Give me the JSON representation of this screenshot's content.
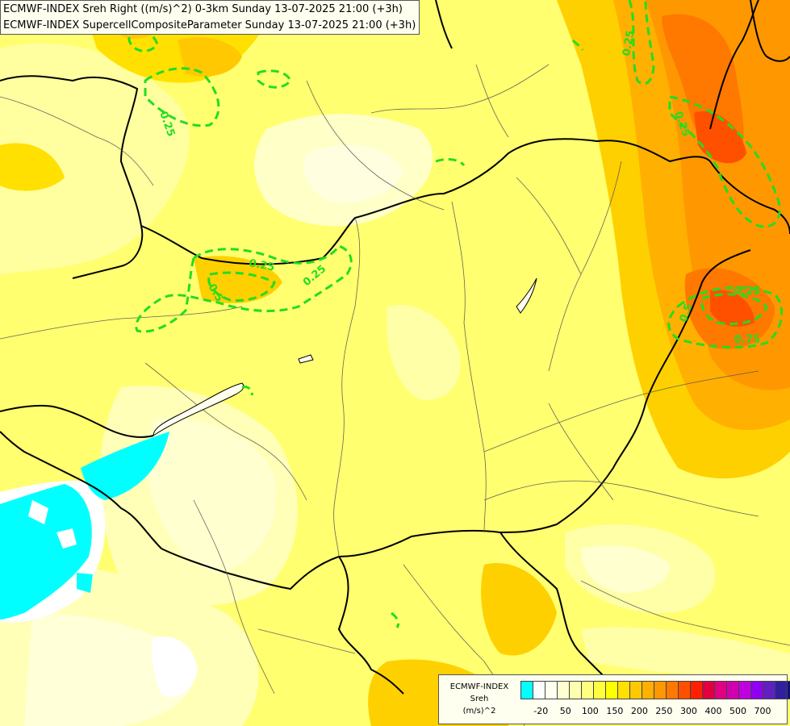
{
  "header": {
    "line1": "ECMWF-INDEX Sreh Right ((m/s)^2) 0-3km Sunday 13-07-2025 21:00 (+3h)",
    "line2": "ECMWF-INDEX SupercellCompositeParameter Sunday 13-07-2025 21:00 (+3h)"
  },
  "legend": {
    "line1": "ECMWF-INDEX",
    "line2": "Sreh",
    "line3": "(m/s)^2",
    "colors": [
      "#00ffff",
      "#ffffff",
      "#fffff0",
      "#ffffd0",
      "#ffffb0",
      "#ffff80",
      "#ffff40",
      "#ffff00",
      "#ffe000",
      "#ffc800",
      "#ffb000",
      "#ff9800",
      "#ff7800",
      "#ff5000",
      "#ff2000",
      "#e00040",
      "#e00080",
      "#d000b0",
      "#c000e0",
      "#9000f0",
      "#6020c0",
      "#3020a0",
      "#101070"
    ],
    "ticks": [
      {
        "label": "-20",
        "index": 1
      },
      {
        "label": "50",
        "index": 3
      },
      {
        "label": "100",
        "index": 5
      },
      {
        "label": "150",
        "index": 7
      },
      {
        "label": "200",
        "index": 9
      },
      {
        "label": "250",
        "index": 11
      },
      {
        "label": "300",
        "index": 13
      },
      {
        "label": "400",
        "index": 15
      },
      {
        "label": "500",
        "index": 17
      },
      {
        "label": "700",
        "index": 19
      }
    ]
  },
  "contours": {
    "color": "#22dd22",
    "labels": [
      "0.25",
      "0.25",
      "0.25",
      "0.25",
      "0.5",
      "0.25",
      "0.25",
      "0.5",
      "0.75"
    ]
  }
}
